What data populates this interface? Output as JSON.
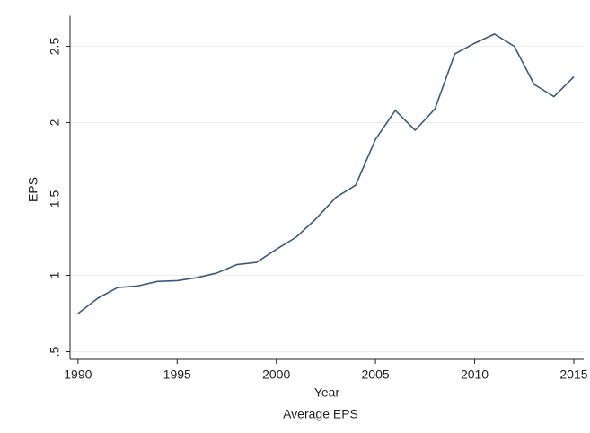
{
  "chart_data": {
    "type": "line",
    "title": "Average EPS",
    "xlabel": "Year",
    "ylabel": "EPS",
    "x": [
      1990,
      1991,
      1992,
      1993,
      1994,
      1995,
      1996,
      1997,
      1998,
      1999,
      2000,
      2001,
      2002,
      2003,
      2004,
      2005,
      2006,
      2007,
      2008,
      2009,
      2010,
      2011,
      2012,
      2013,
      2014,
      2015
    ],
    "values": [
      0.75,
      0.85,
      0.92,
      0.93,
      0.96,
      0.965,
      0.985,
      1.015,
      1.07,
      1.085,
      1.17,
      1.25,
      1.37,
      1.51,
      1.59,
      1.89,
      2.08,
      1.95,
      2.09,
      2.45,
      2.52,
      2.58,
      2.5,
      2.25,
      2.17,
      2.3
    ],
    "color": "#3c5a78",
    "xlim": [
      1989.6,
      2015.5
    ],
    "xticks": [
      1990,
      1995,
      2000,
      2005,
      2010,
      2015
    ],
    "ylim": [
      0.45,
      2.7
    ],
    "yticks": [
      {
        "value": 0.5,
        "label": ".5"
      },
      1,
      1.5,
      2,
      2.5
    ],
    "grid": true
  }
}
